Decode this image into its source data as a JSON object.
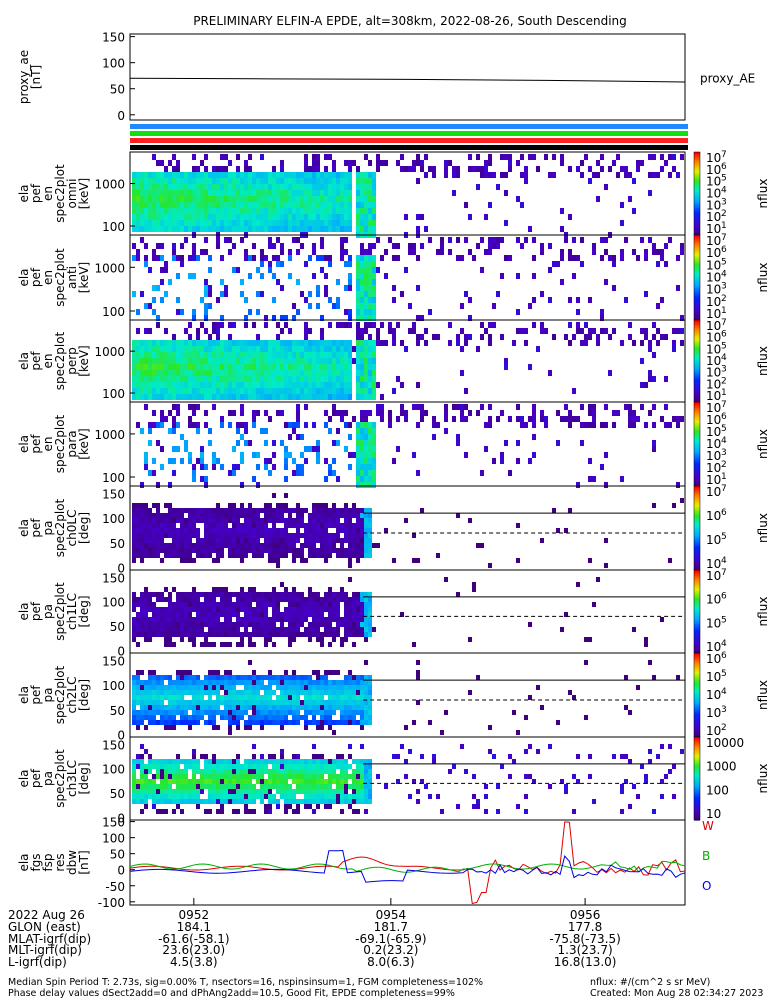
{
  "title": "PRELIMINARY ELFIN-A EPDE, alt=308km, 2022-08-26, South Descending",
  "chart_data": [
    {
      "type": "line",
      "ylabel": [
        "proxy_ae",
        "[nT]"
      ],
      "ylim": [
        -10,
        155
      ],
      "yticks": [
        "150",
        "100",
        "50",
        "0"
      ],
      "legend": "proxy_AE",
      "x": [
        0,
        0.25,
        0.5,
        0.75,
        1.0
      ],
      "values": [
        70,
        69,
        68,
        66,
        63
      ]
    },
    {
      "type": "heatmap",
      "ylabel": [
        "ela",
        "pef",
        "en",
        "spec2plot",
        "omni",
        "[keV]"
      ],
      "yticks": [
        "1000",
        "100"
      ],
      "colorbar": {
        "ticks": [
          "10",
          "10",
          "10",
          "10",
          "10",
          "10",
          "10"
        ],
        "exps": [
          "7",
          "6",
          "5",
          "4",
          "3",
          "2",
          "1"
        ],
        "label": "nflux"
      },
      "density": "high"
    },
    {
      "type": "heatmap",
      "ylabel": [
        "ela",
        "pef",
        "en",
        "spec2plot",
        "anti",
        "[keV]"
      ],
      "yticks": [
        "1000",
        "100"
      ],
      "colorbar": {
        "ticks": [
          "10",
          "10",
          "10",
          "10",
          "10",
          "10",
          "10"
        ],
        "exps": [
          "7",
          "6",
          "5",
          "4",
          "3",
          "2",
          "1"
        ],
        "label": "nflux"
      },
      "density": "low"
    },
    {
      "type": "heatmap",
      "ylabel": [
        "ela",
        "pef",
        "en",
        "spec2plot",
        "perp",
        "[keV]"
      ],
      "yticks": [
        "1000",
        "100"
      ],
      "colorbar": {
        "ticks": [
          "10",
          "10",
          "10",
          "10",
          "10",
          "10",
          "10"
        ],
        "exps": [
          "7",
          "6",
          "5",
          "4",
          "3",
          "2",
          "1"
        ],
        "label": "nflux"
      },
      "density": "high"
    },
    {
      "type": "heatmap",
      "ylabel": [
        "ela",
        "pef",
        "en",
        "spec2plot",
        "para",
        "[keV]"
      ],
      "yticks": [
        "1000",
        "100"
      ],
      "colorbar": {
        "ticks": [
          "10",
          "10",
          "10",
          "10",
          "10",
          "10",
          "10"
        ],
        "exps": [
          "7",
          "6",
          "5",
          "4",
          "3",
          "2",
          "1"
        ],
        "label": "nflux"
      },
      "density": "low"
    },
    {
      "type": "heatmap",
      "ylabel": [
        "ela",
        "pef",
        "pa",
        "spec2plot",
        "ch0LC",
        "[deg]"
      ],
      "yticks": [
        "150",
        "100",
        "50",
        "0"
      ],
      "colorbar": {
        "ticks": [
          "10",
          "10",
          "10",
          "10"
        ],
        "exps": [
          "7",
          "6",
          "5",
          "4"
        ],
        "label": "nflux"
      },
      "density": "pa"
    },
    {
      "type": "heatmap",
      "ylabel": [
        "ela",
        "pef",
        "pa",
        "spec2plot",
        "ch1LC",
        "[deg]"
      ],
      "yticks": [
        "150",
        "100",
        "50",
        "0"
      ],
      "colorbar": {
        "ticks": [
          "10",
          "10",
          "10",
          "10"
        ],
        "exps": [
          "7",
          "6",
          "5",
          "4"
        ],
        "label": "nflux"
      },
      "density": "pa"
    },
    {
      "type": "heatmap",
      "ylabel": [
        "ela",
        "pef",
        "pa",
        "spec2plot",
        "ch2LC",
        "[deg]"
      ],
      "yticks": [
        "150",
        "100",
        "50",
        "0"
      ],
      "colorbar": {
        "ticks": [
          "10",
          "10",
          "10",
          "10",
          "10"
        ],
        "exps": [
          "6",
          "5",
          "4",
          "3",
          "2"
        ],
        "label": "nflux"
      },
      "density": "pa2"
    },
    {
      "type": "heatmap",
      "ylabel": [
        "ela",
        "pef",
        "pa",
        "spec2plot",
        "ch3LC",
        "[deg]"
      ],
      "yticks": [
        "150",
        "100",
        "50",
        "0"
      ],
      "colorbar": {
        "ticks": [
          "10000",
          "1000",
          "100",
          "10"
        ],
        "exps": [
          "",
          "",
          "",
          ""
        ],
        "label": "nflux"
      },
      "density": "pa3"
    },
    {
      "type": "line",
      "ylabel": [
        "ela",
        "fgs",
        "fsp",
        "res",
        "dbw",
        "[nT]"
      ],
      "ylim": [
        -110,
        155
      ],
      "yticks": [
        "150",
        "100",
        "50",
        "0",
        "-50",
        "-100"
      ],
      "legend": [
        "W",
        "B",
        "O"
      ],
      "series": [
        {
          "name": "W",
          "color": "#e00000"
        },
        {
          "name": "B",
          "color": "#00b000"
        },
        {
          "name": "O",
          "color": "#0000e0"
        }
      ]
    }
  ],
  "xaxis": {
    "date": "2022 Aug 26",
    "ticks": [
      "0952",
      "0954",
      "0956"
    ],
    "rows": [
      {
        "label": "GLON (east)",
        "values": [
          "184.1",
          "181.7",
          "177.8"
        ]
      },
      {
        "label": "MLAT-igrf(dip)",
        "values": [
          "-61.6(-58.1)",
          "-69.1(-65.9)",
          "-75.8(-73.5)"
        ]
      },
      {
        "label": "MLT-igrf(dip)",
        "values": [
          "23.6(23.0)",
          "0.2(23.2)",
          "1.3(23.7)"
        ]
      },
      {
        "label": "L-igrf(dip)",
        "values": [
          "4.5(3.8)",
          "8.0(6.3)",
          "16.8(13.0)"
        ]
      }
    ]
  },
  "footer": {
    "line1": "Median Spin Period T: 2.73s, sig=0.00% T, nsectors=16, nspinsinsum=1, FGM completeness=102%",
    "line2": "Phase delay values dSect2add=0 and dPhAng2add=10.5, Good Fit, EPDE completeness=99%",
    "units": "nflux: #/(cm^2 s sr MeV)",
    "created": "Created: Mon Aug 28 02:34:27 2023"
  },
  "colors": {
    "blue_bar": "#1e88ff",
    "green_bar": "#10e010",
    "red_bar": "#ff2020",
    "black_bar": "#000000"
  }
}
